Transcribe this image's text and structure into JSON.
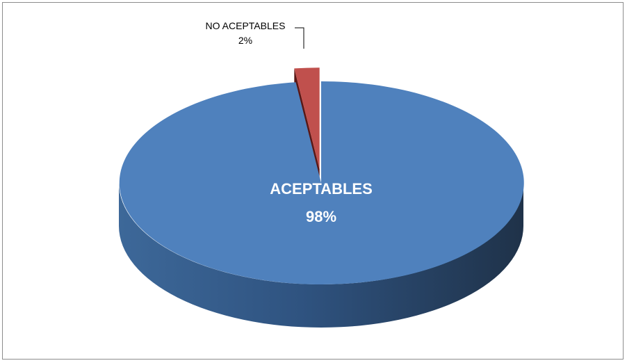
{
  "chart_data": {
    "type": "pie",
    "style": "3d-exploded",
    "categories": [
      "ACEPTABLES",
      "NO ACEPTABLES"
    ],
    "values": [
      98,
      2
    ],
    "percent_labels": [
      "98%",
      "2%"
    ],
    "colors": [
      "#4F81BD",
      "#C0504D"
    ],
    "legend": "none",
    "title": ""
  }
}
